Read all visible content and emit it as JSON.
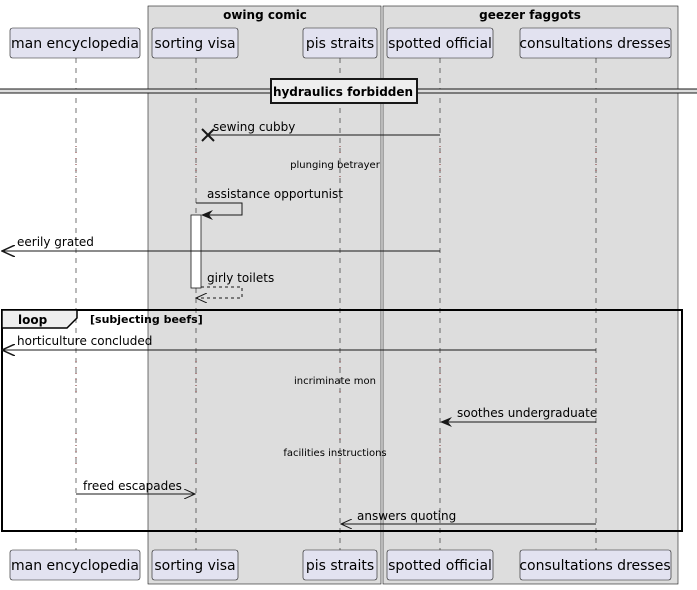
{
  "colors": {
    "box_fill": "#dddddd",
    "participant_fill": "#e2e2f0",
    "line": "#181818",
    "delay_dots": "#7b2d2d"
  },
  "boxes": [
    {
      "title": "owing comic"
    },
    {
      "title": "geezer faggots"
    }
  ],
  "participants": [
    {
      "name": "man encyclopedia"
    },
    {
      "name": "sorting visa"
    },
    {
      "name": "pis straits"
    },
    {
      "name": "spotted official"
    },
    {
      "name": "consultations dresses"
    }
  ],
  "divider": {
    "label": "hydraulics forbidden"
  },
  "messages": [
    {
      "label": "sewing cubby",
      "from": "spotted official",
      "to": "sorting visa",
      "style": "destroy"
    },
    {
      "label": "assistance opportunist",
      "from": "sorting visa",
      "to": "sorting visa",
      "style": "self"
    },
    {
      "label": "eerily grated",
      "from": "spotted official",
      "to": "outside-left",
      "style": "solid"
    },
    {
      "label": "girly toilets",
      "from": "sorting visa",
      "to": "sorting visa",
      "style": "self-return"
    },
    {
      "label": "horticulture concluded",
      "from": "consultations dresses",
      "to": "outside-left",
      "style": "solid"
    },
    {
      "label": "soothes undergraduate",
      "from": "consultations dresses",
      "to": "spotted official",
      "style": "solid"
    },
    {
      "label": "freed escapades",
      "from": "man encyclopedia",
      "to": "sorting visa",
      "style": "open"
    },
    {
      "label": "answers quoting",
      "from": "consultations dresses",
      "to": "pis straits",
      "style": "open"
    }
  ],
  "delays": [
    {
      "label": "plunging betrayer"
    },
    {
      "label": "incriminate mon"
    },
    {
      "label": "facilities instructions"
    }
  ],
  "loop": {
    "keyword": "loop",
    "condition": "[subjecting beefs]"
  }
}
